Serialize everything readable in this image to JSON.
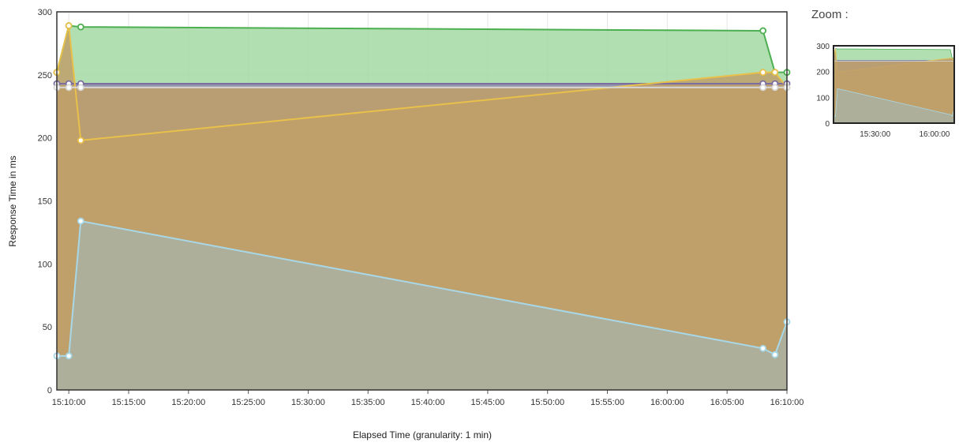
{
  "zoom_title": "Zoom :",
  "chart_data": {
    "type": "area",
    "title": "",
    "xlabel": "Elapsed Time (granularity: 1 min)",
    "ylabel": "Response Time in ms",
    "ylim": [
      0,
      300
    ],
    "yticks": [
      0,
      50,
      100,
      150,
      200,
      250,
      300
    ],
    "xlim": [
      "15:09:00",
      "16:10:00"
    ],
    "xticks": [
      "15:10:00",
      "15:15:00",
      "15:20:00",
      "15:25:00",
      "15:30:00",
      "15:35:00",
      "15:40:00",
      "15:45:00",
      "15:50:00",
      "15:55:00",
      "16:00:00",
      "16:05:00",
      "16:10:00"
    ],
    "grid": true,
    "legend": "none",
    "series": [
      {
        "color": "#4caf50",
        "fill": "#a3d9a5",
        "points": [
          [
            "15:09:00",
            252
          ],
          [
            "15:10:00",
            289
          ],
          [
            "15:11:00",
            288
          ],
          [
            "16:08:00",
            285
          ],
          [
            "16:09:00",
            252
          ],
          [
            "16:10:00",
            252
          ]
        ]
      },
      {
        "color": "#7b6ea0",
        "fill": "#8e86a8",
        "points": [
          [
            "15:09:00",
            243
          ],
          [
            "15:10:00",
            243
          ],
          [
            "15:11:00",
            243
          ],
          [
            "16:08:00",
            243
          ],
          [
            "16:09:00",
            243
          ],
          [
            "16:10:00",
            243
          ]
        ]
      },
      {
        "color": "#e8c04a",
        "fill": "#c0a06a",
        "points": [
          [
            "15:09:00",
            252
          ],
          [
            "15:10:00",
            289
          ],
          [
            "15:11:00",
            198
          ],
          [
            "16:08:00",
            252
          ],
          [
            "16:09:00",
            252
          ],
          [
            "16:10:00",
            240
          ]
        ]
      },
      {
        "color": "#d8d8d8",
        "fill": "#c0a06a",
        "points": [
          [
            "15:09:00",
            240
          ],
          [
            "15:10:00",
            240
          ],
          [
            "15:11:00",
            240
          ],
          [
            "16:08:00",
            240
          ],
          [
            "16:09:00",
            240
          ],
          [
            "16:10:00",
            240
          ]
        ]
      },
      {
        "color": "#a8d8e8",
        "fill": "#a9b2a3",
        "points": [
          [
            "15:09:00",
            27
          ],
          [
            "15:10:00",
            27
          ],
          [
            "15:11:00",
            134
          ],
          [
            "16:08:00",
            33
          ],
          [
            "16:09:00",
            28
          ],
          [
            "16:10:00",
            54
          ]
        ]
      }
    ]
  },
  "zoom_chart": {
    "ylim": [
      0,
      300
    ],
    "yticks": [
      0,
      100,
      200,
      300
    ],
    "xticks": [
      "15:30:00",
      "16:00:00"
    ]
  }
}
